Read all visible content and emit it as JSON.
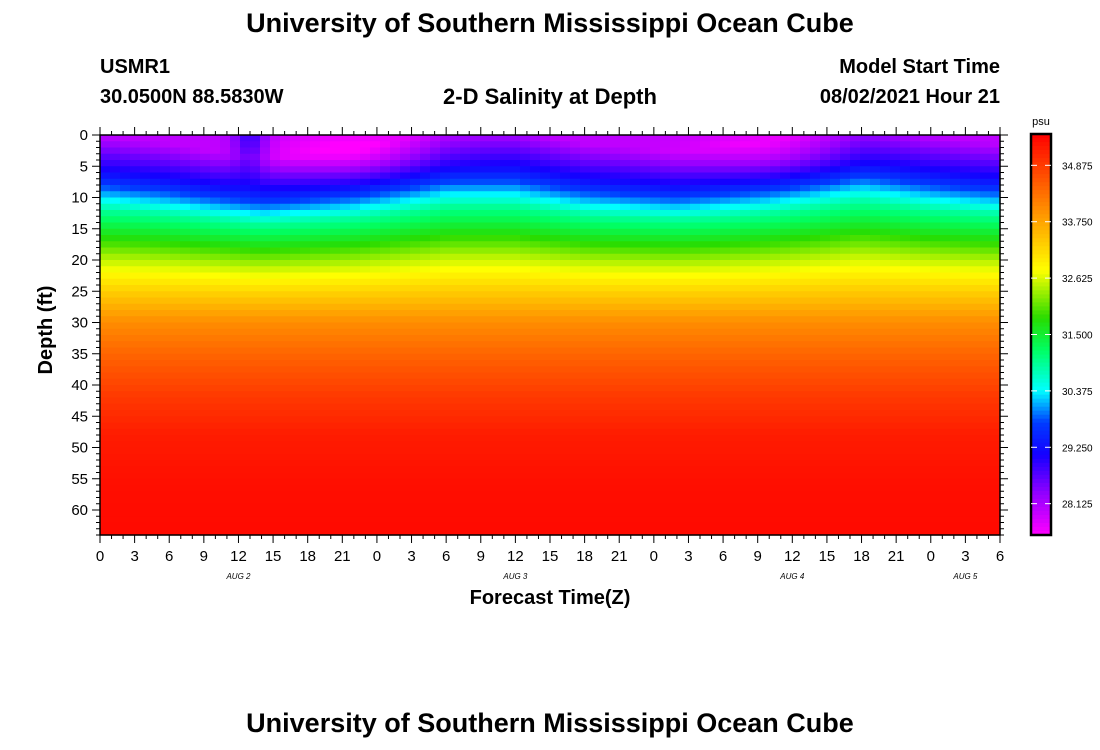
{
  "header": {
    "title_top": "University of Southern Mississippi Ocean Cube",
    "title_bottom": "University of Southern Mississippi Ocean Cube",
    "station_id": "USMR1",
    "station_coords": "30.0500N  88.5830W",
    "plot_title": "2-D Salinity at Depth",
    "model_start_label": "Model Start Time",
    "model_start_value": "08/02/2021 Hour 21"
  },
  "colors": {
    "frame": "#000000",
    "background": "#ffffff"
  },
  "chart_data": {
    "type": "heatmap",
    "title": "2-D Salinity at Depth",
    "xlabel": "Forecast Time(Z)",
    "ylabel": "Depth (ft)",
    "x_range_hours": [
      0,
      78
    ],
    "y_range_ft": [
      0,
      64
    ],
    "y_ticks": [
      "0",
      "5",
      "10",
      "15",
      "20",
      "25",
      "30",
      "35",
      "40",
      "45",
      "50",
      "55",
      "60"
    ],
    "y_tick_values": [
      0,
      5,
      10,
      15,
      20,
      25,
      30,
      35,
      40,
      45,
      50,
      55,
      60
    ],
    "x_ticks": [
      "0",
      "3",
      "6",
      "9",
      "12",
      "15",
      "18",
      "21",
      "0",
      "3",
      "6",
      "9",
      "12",
      "15",
      "18",
      "21",
      "0",
      "3",
      "6",
      "9",
      "12",
      "15",
      "18",
      "21",
      "0",
      "3",
      "6"
    ],
    "day_labels": [
      {
        "text": "AUG  2",
        "hour": 12
      },
      {
        "text": "AUG  3",
        "hour": 36
      },
      {
        "text": "AUG  4",
        "hour": 60
      },
      {
        "text": "AUG  5",
        "hour": 75
      }
    ],
    "colorbar": {
      "unit": "psu",
      "min": 27.5,
      "max": 35.5,
      "tick_labels": [
        "34.875",
        "33.750",
        "32.625",
        "31.500",
        "30.375",
        "29.250",
        "28.125"
      ],
      "tick_values": [
        34.875,
        33.75,
        32.625,
        31.5,
        30.375,
        29.25,
        28.125
      ]
    },
    "depth_profile": {
      "depths_ft": [
        0,
        3,
        6,
        9,
        12,
        16,
        20,
        25,
        30,
        36,
        42,
        48,
        56,
        64
      ],
      "salinity_psu": [
        28.0,
        28.6,
        29.2,
        30.0,
        30.9,
        31.7,
        32.5,
        33.3,
        34.0,
        34.5,
        34.9,
        35.2,
        35.35,
        35.4
      ]
    },
    "thermocline_shift_ft_by_hour": {
      "hours": [
        0,
        6,
        14,
        22,
        30,
        36,
        42,
        50,
        58,
        66,
        72,
        78
      ],
      "shift": [
        0.0,
        1.5,
        4.5,
        2.5,
        -1.0,
        -1.0,
        1.5,
        3.0,
        1.0,
        -2.0,
        0.0,
        1.5
      ]
    },
    "fresh_core_surface": [
      {
        "hour": 22,
        "depth_ft": 3,
        "strength_psu": 0.6
      },
      {
        "hour": 58,
        "depth_ft": 3,
        "strength_psu": 0.5
      }
    ],
    "surface_notch_hour": 13
  }
}
